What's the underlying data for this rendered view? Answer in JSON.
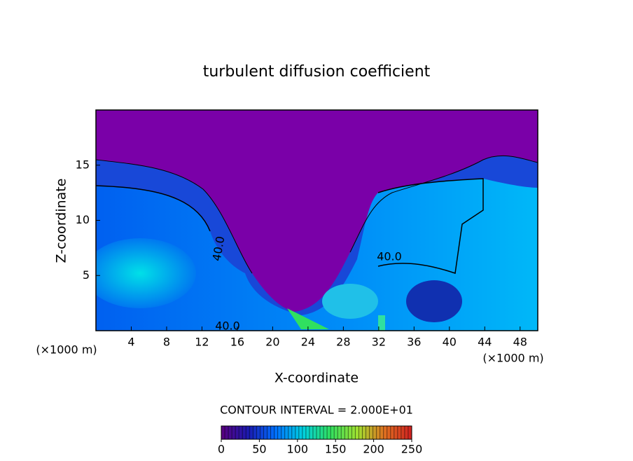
{
  "chart_data": {
    "type": "contour",
    "title": "turbulent diffusion coefficient",
    "x_label": "X-coordinate",
    "y_label": "Z-coordinate",
    "x_unit": "(×1000 m)",
    "y_unit": "(×1000 m)",
    "xlim": [
      0,
      50
    ],
    "ylim": [
      0,
      20
    ],
    "xticks": [
      4,
      8,
      12,
      16,
      20,
      24,
      28,
      32,
      36,
      40,
      44,
      48
    ],
    "yticks": [
      5,
      10,
      15
    ],
    "contour_interval": "CONTOUR INTERVAL = 2.000E+01",
    "contour_labels": [
      "40.0",
      "40.0",
      "40.0"
    ],
    "colorbar": {
      "lim": [
        0,
        250
      ],
      "ticks": [
        0,
        50,
        100,
        150,
        200,
        250
      ],
      "colors": [
        "#5a0080",
        "#1a1ab0",
        "#0070ff",
        "#00d0e0",
        "#30e060",
        "#a0e030",
        "#e07020",
        "#d02020"
      ]
    }
  }
}
